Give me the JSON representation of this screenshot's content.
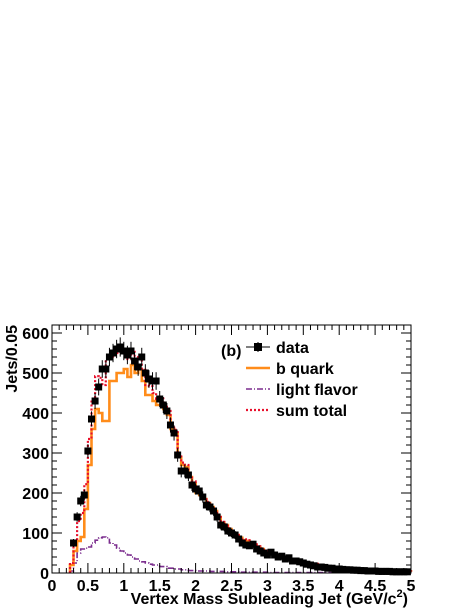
{
  "chart_data": {
    "type": "line",
    "panel_label": "(b)",
    "xlabel": "Vertex Mass Subleading Jet (GeV/c",
    "xlabel_sup": "2",
    "xlabel_close": ")",
    "ylabel": "Jets/0.05",
    "xlim": [
      0,
      5
    ],
    "ylim": [
      0,
      620
    ],
    "x_ticks": [
      0,
      0.5,
      1,
      1.5,
      2,
      2.5,
      3,
      3.5,
      4,
      4.5,
      5
    ],
    "x_tick_labels": [
      "0",
      "0.5",
      "1",
      "1.5",
      "2",
      "2.5",
      "3",
      "3.5",
      "4",
      "4.5",
      "5"
    ],
    "y_ticks": [
      0,
      100,
      200,
      300,
      400,
      500,
      600
    ],
    "y_tick_labels": [
      "0",
      "100",
      "200",
      "300",
      "400",
      "500",
      "600"
    ],
    "legend_position": "top-right",
    "series": [
      {
        "name": "data",
        "style": "markers",
        "color": "#000000",
        "points": [
          [
            0.3,
            75,
            10
          ],
          [
            0.35,
            140,
            12
          ],
          [
            0.4,
            180,
            13
          ],
          [
            0.45,
            195,
            14
          ],
          [
            0.5,
            305,
            17
          ],
          [
            0.55,
            385,
            19
          ],
          [
            0.6,
            430,
            20
          ],
          [
            0.65,
            465,
            21
          ],
          [
            0.7,
            510,
            22
          ],
          [
            0.75,
            510,
            22
          ],
          [
            0.8,
            540,
            23
          ],
          [
            0.85,
            550,
            23
          ],
          [
            0.9,
            560,
            23
          ],
          [
            0.95,
            565,
            24
          ],
          [
            1.0,
            555,
            23
          ],
          [
            1.05,
            545,
            23
          ],
          [
            1.1,
            555,
            23
          ],
          [
            1.15,
            530,
            23
          ],
          [
            1.2,
            515,
            22
          ],
          [
            1.25,
            540,
            23
          ],
          [
            1.3,
            500,
            22
          ],
          [
            1.35,
            485,
            22
          ],
          [
            1.4,
            480,
            22
          ],
          [
            1.45,
            480,
            22
          ],
          [
            1.5,
            435,
            20
          ],
          [
            1.55,
            420,
            20
          ],
          [
            1.6,
            405,
            20
          ],
          [
            1.65,
            370,
            19
          ],
          [
            1.7,
            350,
            19
          ],
          [
            1.75,
            295,
            17
          ],
          [
            1.8,
            255,
            16
          ],
          [
            1.85,
            255,
            16
          ],
          [
            1.9,
            245,
            15
          ],
          [
            1.95,
            220,
            15
          ],
          [
            2.0,
            210,
            14
          ],
          [
            2.05,
            205,
            14
          ],
          [
            2.1,
            190,
            14
          ],
          [
            2.15,
            170,
            13
          ],
          [
            2.2,
            165,
            13
          ],
          [
            2.25,
            155,
            12
          ],
          [
            2.3,
            140,
            12
          ],
          [
            2.35,
            120,
            11
          ],
          [
            2.4,
            115,
            11
          ],
          [
            2.45,
            105,
            10
          ],
          [
            2.5,
            100,
            10
          ],
          [
            2.55,
            95,
            10
          ],
          [
            2.6,
            85,
            9
          ],
          [
            2.65,
            75,
            9
          ],
          [
            2.7,
            70,
            8
          ],
          [
            2.75,
            68,
            8
          ],
          [
            2.8,
            72,
            8
          ],
          [
            2.85,
            60,
            8
          ],
          [
            2.9,
            55,
            7
          ],
          [
            2.95,
            50,
            7
          ],
          [
            3.0,
            45,
            7
          ],
          [
            3.05,
            52,
            7
          ],
          [
            3.1,
            45,
            7
          ],
          [
            3.15,
            40,
            6
          ],
          [
            3.2,
            42,
            6
          ],
          [
            3.25,
            35,
            6
          ],
          [
            3.3,
            38,
            6
          ],
          [
            3.35,
            30,
            5
          ],
          [
            3.4,
            30,
            5
          ],
          [
            3.45,
            28,
            5
          ],
          [
            3.5,
            25,
            5
          ],
          [
            3.55,
            22,
            5
          ],
          [
            3.6,
            20,
            4
          ],
          [
            3.65,
            18,
            4
          ],
          [
            3.7,
            15,
            4
          ],
          [
            3.75,
            15,
            4
          ],
          [
            3.8,
            14,
            4
          ],
          [
            3.85,
            12,
            3
          ],
          [
            3.9,
            12,
            3
          ],
          [
            3.95,
            10,
            3
          ],
          [
            4.0,
            10,
            3
          ],
          [
            4.05,
            9,
            3
          ],
          [
            4.1,
            8,
            3
          ],
          [
            4.15,
            8,
            3
          ],
          [
            4.2,
            7,
            3
          ],
          [
            4.25,
            7,
            3
          ],
          [
            4.3,
            6,
            2
          ],
          [
            4.35,
            6,
            2
          ],
          [
            4.4,
            5,
            2
          ],
          [
            4.45,
            5,
            2
          ],
          [
            4.5,
            5,
            2
          ],
          [
            4.55,
            4,
            2
          ],
          [
            4.6,
            4,
            2
          ],
          [
            4.65,
            4,
            2
          ],
          [
            4.7,
            4,
            2
          ],
          [
            4.75,
            3,
            2
          ],
          [
            4.8,
            3,
            2
          ],
          [
            4.85,
            3,
            2
          ],
          [
            4.9,
            3,
            2
          ],
          [
            4.95,
            3,
            2
          ]
        ]
      },
      {
        "name": "b quark",
        "style": "step-solid",
        "color": "#ff8c1a",
        "x": [
          0.25,
          0.3,
          0.35,
          0.4,
          0.45,
          0.5,
          0.55,
          0.6,
          0.65,
          0.7,
          0.75,
          0.8,
          0.85,
          0.9,
          0.95,
          1.0,
          1.05,
          1.1,
          1.15,
          1.2,
          1.25,
          1.3,
          1.35,
          1.4,
          1.45,
          1.5,
          1.55,
          1.6,
          1.65,
          1.7,
          1.75,
          1.8,
          1.85,
          1.9,
          1.95,
          2.0,
          2.05,
          2.1,
          2.15,
          2.2,
          2.25,
          2.3,
          2.35,
          2.4,
          2.45,
          2.5,
          2.55,
          2.6,
          2.65,
          2.7,
          2.75,
          2.8,
          2.85,
          2.9,
          2.95,
          3.0,
          3.1,
          3.2,
          3.3,
          3.4,
          3.5,
          3.6,
          3.7,
          3.8,
          3.9,
          4.0,
          4.2,
          4.4,
          4.6,
          4.8,
          5.0
        ],
        "values": [
          20,
          55,
          80,
          90,
          160,
          270,
          360,
          410,
          400,
          380,
          380,
          480,
          480,
          500,
          500,
          510,
          490,
          520,
          500,
          510,
          480,
          445,
          445,
          430,
          420,
          420,
          410,
          395,
          360,
          350,
          290,
          270,
          265,
          240,
          225,
          200,
          195,
          185,
          175,
          165,
          155,
          140,
          125,
          120,
          110,
          100,
          95,
          88,
          82,
          80,
          75,
          70,
          65,
          60,
          55,
          50,
          45,
          40,
          35,
          30,
          25,
          22,
          18,
          15,
          12,
          10,
          8,
          6,
          5,
          4,
          3
        ]
      },
      {
        "name": "light flavor",
        "style": "step-dashdot",
        "color": "#7b2d8e",
        "x": [
          0.25,
          0.3,
          0.35,
          0.4,
          0.45,
          0.5,
          0.55,
          0.6,
          0.65,
          0.7,
          0.75,
          0.8,
          0.85,
          0.9,
          0.95,
          1.0,
          1.05,
          1.1,
          1.15,
          1.2,
          1.25,
          1.3,
          1.35,
          1.4,
          1.5,
          1.6,
          1.7,
          1.8,
          1.9,
          2.0,
          2.2,
          2.4,
          2.6,
          2.8,
          3.0,
          3.5,
          4.0,
          4.5,
          5.0
        ],
        "values": [
          5,
          25,
          50,
          60,
          62,
          65,
          75,
          82,
          88,
          90,
          88,
          75,
          70,
          62,
          55,
          50,
          45,
          40,
          35,
          30,
          28,
          25,
          22,
          20,
          16,
          12,
          10,
          8,
          6,
          5,
          4,
          3,
          2,
          2,
          1,
          1,
          1,
          0,
          0
        ]
      },
      {
        "name": "sum total",
        "style": "step-dotted",
        "color": "#e8102c",
        "x": [
          0.25,
          0.3,
          0.35,
          0.4,
          0.45,
          0.5,
          0.55,
          0.6,
          0.65,
          0.7,
          0.75,
          0.8,
          0.85,
          0.9,
          0.95,
          1.0,
          1.05,
          1.1,
          1.15,
          1.2,
          1.25,
          1.3,
          1.35,
          1.4,
          1.45,
          1.5,
          1.55,
          1.6,
          1.65,
          1.7,
          1.75,
          1.8,
          1.85,
          1.9,
          1.95,
          2.0,
          2.05,
          2.1,
          2.15,
          2.2,
          2.25,
          2.3,
          2.35,
          2.4,
          2.45,
          2.5,
          2.55,
          2.6,
          2.65,
          2.7,
          2.75,
          2.8,
          2.85,
          2.9,
          2.95,
          3.0,
          3.1,
          3.2,
          3.3,
          3.4,
          3.5,
          3.6,
          3.7,
          3.8,
          3.9,
          4.0,
          4.2,
          4.4,
          4.6,
          4.8,
          5.0
        ],
        "values": [
          25,
          80,
          130,
          150,
          222,
          335,
          435,
          492,
          488,
          470,
          535,
          535,
          545,
          550,
          555,
          560,
          535,
          560,
          535,
          540,
          508,
          470,
          467,
          450,
          435,
          436,
          422,
          405,
          370,
          358,
          296,
          276,
          270,
          244,
          229,
          205,
          199,
          189,
          178,
          168,
          158,
          143,
          128,
          122,
          112,
          103,
          98,
          90,
          84,
          82,
          77,
          72,
          67,
          62,
          56,
          51,
          46,
          41,
          36,
          31,
          26,
          23,
          19,
          16,
          13,
          11,
          9,
          7,
          5,
          4,
          3
        ]
      }
    ]
  }
}
